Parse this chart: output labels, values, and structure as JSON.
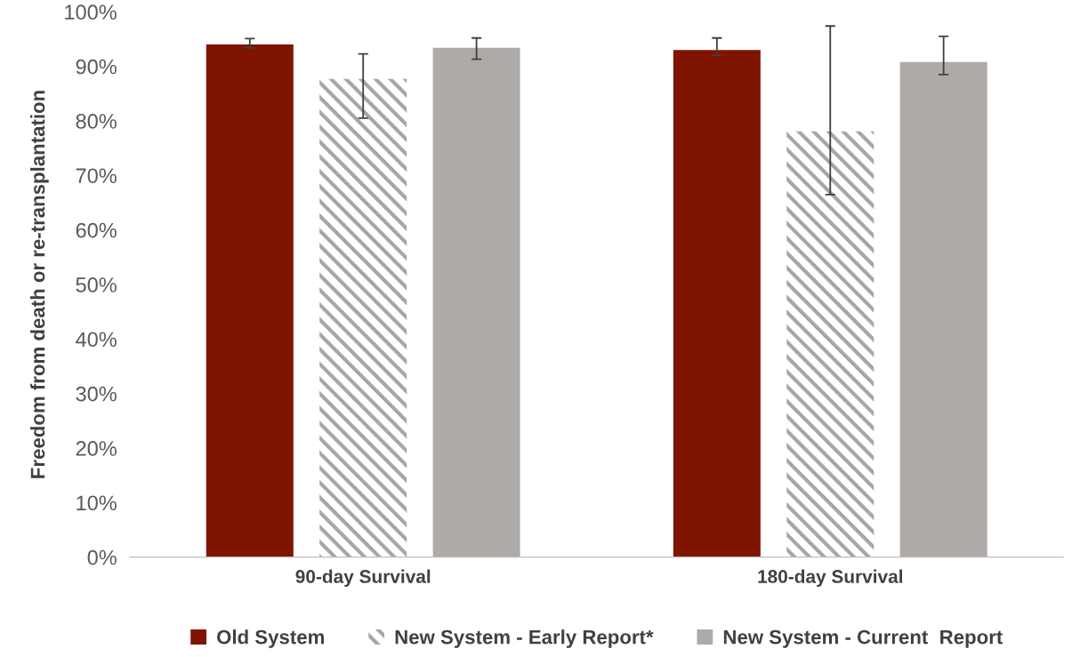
{
  "chart_data": {
    "type": "bar",
    "ylabel": "Freedom from death or re-transplantation",
    "categories": [
      "90-day Survival",
      "180-day Survival"
    ],
    "series": [
      {
        "name": "Old System",
        "color": "#7f1400",
        "values": [
          94.0,
          93.0
        ],
        "errors": [
          [
            93.4,
            95.1
          ],
          [
            92.0,
            95.2
          ]
        ]
      },
      {
        "name": "New System - Early Report*",
        "color": "#a6a6a6",
        "values": [
          87.7,
          78.1
        ],
        "errors": [
          [
            80.5,
            92.3
          ],
          [
            66.5,
            97.4
          ]
        ]
      },
      {
        "name": "New System - Current  Report",
        "color": "#aeaaa8",
        "values": [
          93.4,
          90.8
        ],
        "errors": [
          [
            91.3,
            95.2
          ],
          [
            88.5,
            95.5
          ]
        ]
      }
    ],
    "ylim": [
      0,
      100
    ],
    "yticks": [
      {
        "value": 0,
        "label": "0%"
      },
      {
        "value": 10,
        "label": "10%"
      },
      {
        "value": 20,
        "label": "20%"
      },
      {
        "value": 30,
        "label": "30%"
      },
      {
        "value": 40,
        "label": "40%"
      },
      {
        "value": 50,
        "label": "50%"
      },
      {
        "value": 60,
        "label": "60%"
      },
      {
        "value": 70,
        "label": "70%"
      },
      {
        "value": 80,
        "label": "80%"
      },
      {
        "value": 90,
        "label": "90%"
      },
      {
        "value": 100,
        "label": "100%"
      }
    ],
    "grid": false,
    "legend": "bottom"
  }
}
